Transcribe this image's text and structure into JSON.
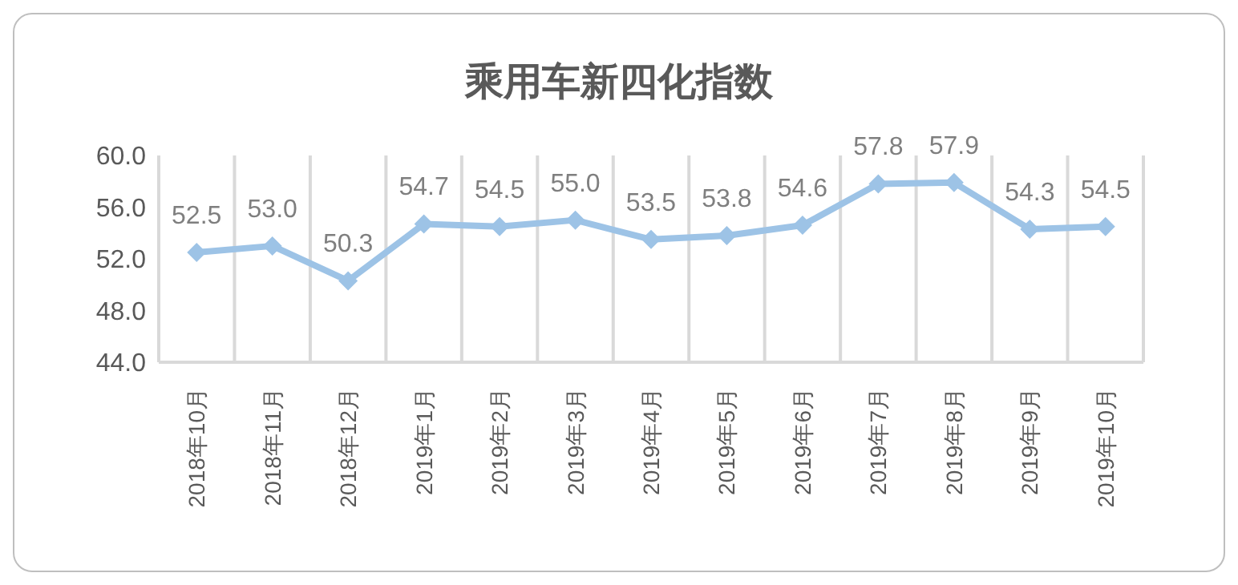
{
  "chart_data": {
    "type": "line",
    "title": "乘用车新四化指数",
    "categories": [
      "2018年10月",
      "2018年11月",
      "2018年12月",
      "2019年1月",
      "2019年2月",
      "2019年3月",
      "2019年4月",
      "2019年5月",
      "2019年6月",
      "2019年7月",
      "2019年8月",
      "2019年9月",
      "2019年10月"
    ],
    "series": [
      {
        "color": "#9dc3e6",
        "values": [
          52.5,
          53.0,
          50.3,
          54.7,
          54.5,
          55.0,
          53.5,
          53.8,
          54.6,
          57.8,
          57.9,
          54.3,
          54.5
        ],
        "value_labels": [
          "52.5",
          "53.0",
          "50.3",
          "54.7",
          "54.5",
          "55.0",
          "53.5",
          "53.8",
          "54.6",
          "57.8",
          "57.9",
          "54.3",
          "54.5"
        ]
      }
    ],
    "ylim": [
      44,
      60
    ],
    "yticks": [
      {
        "value": 44,
        "label": "44.0"
      },
      {
        "value": 48,
        "label": "48.0"
      },
      {
        "value": 52,
        "label": "52.0"
      },
      {
        "value": 56,
        "label": "56.0"
      },
      {
        "value": 60,
        "label": "60.0"
      }
    ],
    "grid": "x",
    "marker": "diamond"
  }
}
